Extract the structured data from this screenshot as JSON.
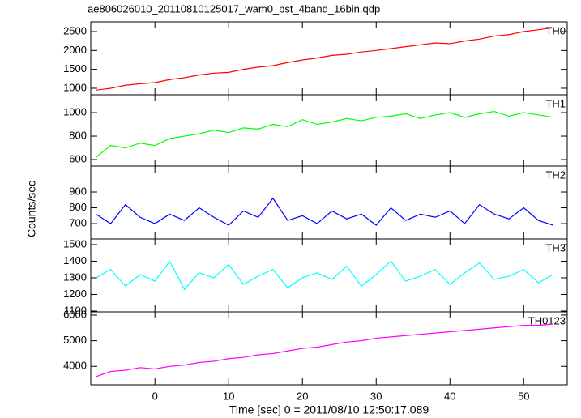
{
  "chart_data": [
    {
      "type": "line",
      "title": "ae806026010_20110810125017_wam0_bst_4band_16bin.qdp",
      "label": "TH0",
      "x": [
        -8,
        -6,
        -4,
        -2,
        0,
        2,
        4,
        6,
        8,
        10,
        12,
        14,
        16,
        18,
        20,
        22,
        24,
        26,
        28,
        30,
        32,
        34,
        36,
        38,
        40,
        42,
        44,
        46,
        48,
        50,
        52,
        54
      ],
      "series": [
        {
          "name": "TH0",
          "color": "#ff0000",
          "values": [
            950,
            1000,
            1080,
            1120,
            1150,
            1230,
            1280,
            1350,
            1400,
            1420,
            1500,
            1560,
            1600,
            1680,
            1750,
            1800,
            1870,
            1900,
            1960,
            2000,
            2050,
            2100,
            2150,
            2200,
            2180,
            2250,
            2300,
            2380,
            2420,
            2500,
            2550,
            2600
          ]
        }
      ],
      "xlim": [
        -8.7,
        55.9
      ],
      "xticks": [
        0,
        10,
        20,
        30,
        40,
        50
      ],
      "ylim": [
        828,
        2757
      ],
      "yticks": [
        1000,
        1500,
        2000,
        2500
      ]
    },
    {
      "type": "line",
      "label": "TH1",
      "x": [
        -8,
        -6,
        -4,
        -2,
        0,
        2,
        4,
        6,
        8,
        10,
        12,
        14,
        16,
        18,
        20,
        22,
        24,
        26,
        28,
        30,
        32,
        34,
        36,
        38,
        40,
        42,
        44,
        46,
        48,
        50,
        52,
        54
      ],
      "series": [
        {
          "name": "TH1",
          "color": "#00ff00",
          "values": [
            620,
            720,
            700,
            740,
            720,
            780,
            800,
            820,
            850,
            830,
            870,
            860,
            900,
            880,
            940,
            900,
            920,
            950,
            930,
            960,
            970,
            990,
            950,
            980,
            1000,
            960,
            990,
            1010,
            970,
            1000,
            980,
            960
          ]
        }
      ],
      "xlim": [
        -8.7,
        55.9
      ],
      "xticks": [
        0,
        10,
        20,
        30,
        40,
        50
      ],
      "ylim": [
        545,
        1152
      ],
      "yticks": [
        600,
        800,
        1000
      ]
    },
    {
      "type": "line",
      "label": "TH2",
      "ylabel": "Counts/sec",
      "x": [
        -8,
        -6,
        -4,
        -2,
        0,
        2,
        4,
        6,
        8,
        10,
        12,
        14,
        16,
        18,
        20,
        22,
        24,
        26,
        28,
        30,
        32,
        34,
        36,
        38,
        40,
        42,
        44,
        46,
        48,
        50,
        52,
        54
      ],
      "series": [
        {
          "name": "TH2",
          "color": "#0000ff",
          "values": [
            760,
            700,
            820,
            740,
            700,
            760,
            720,
            800,
            740,
            690,
            780,
            740,
            860,
            720,
            750,
            700,
            780,
            730,
            760,
            690,
            800,
            720,
            760,
            740,
            780,
            700,
            820,
            760,
            730,
            800,
            720,
            690
          ]
        }
      ],
      "xlim": [
        -8.7,
        55.9
      ],
      "xticks": [
        0,
        10,
        20,
        30,
        40,
        50
      ],
      "ylim": [
        603,
        1064
      ],
      "yticks": [
        700,
        800,
        900
      ]
    },
    {
      "type": "line",
      "label": "TH3",
      "x": [
        -8,
        -6,
        -4,
        -2,
        0,
        2,
        4,
        6,
        8,
        10,
        12,
        14,
        16,
        18,
        20,
        22,
        24,
        26,
        28,
        30,
        32,
        34,
        36,
        38,
        40,
        42,
        44,
        46,
        48,
        50,
        52,
        54
      ],
      "series": [
        {
          "name": "TH3",
          "color": "#00ffff",
          "values": [
            1300,
            1350,
            1250,
            1320,
            1280,
            1400,
            1230,
            1330,
            1300,
            1380,
            1260,
            1310,
            1350,
            1240,
            1300,
            1330,
            1290,
            1370,
            1250,
            1320,
            1400,
            1280,
            1310,
            1350,
            1260,
            1330,
            1390,
            1290,
            1310,
            1350,
            1270,
            1320
          ]
        }
      ],
      "xlim": [
        -8.7,
        55.9
      ],
      "xticks": [
        0,
        10,
        20,
        30,
        40,
        50
      ],
      "ylim": [
        1095,
        1534
      ],
      "yticks": [
        1100,
        1200,
        1300,
        1400,
        1500
      ]
    },
    {
      "type": "line",
      "label": "TH0123",
      "xlabel": "Time [sec] 0 = 2011/08/10 12:50:17.089",
      "x": [
        -8,
        -6,
        -4,
        -2,
        0,
        2,
        4,
        6,
        8,
        10,
        12,
        14,
        16,
        18,
        20,
        22,
        24,
        26,
        28,
        30,
        32,
        34,
        36,
        38,
        40,
        42,
        44,
        46,
        48,
        50,
        52,
        54
      ],
      "series": [
        {
          "name": "TH0123",
          "color": "#ff00ff",
          "values": [
            3600,
            3800,
            3850,
            3950,
            3900,
            4000,
            4050,
            4150,
            4200,
            4300,
            4350,
            4450,
            4500,
            4600,
            4700,
            4750,
            4850,
            4950,
            5000,
            5100,
            5150,
            5200,
            5250,
            5300,
            5350,
            5400,
            5450,
            5500,
            5550,
            5600,
            5600,
            5650
          ]
        }
      ],
      "xlim": [
        -8.7,
        55.9
      ],
      "xticks": [
        0,
        10,
        20,
        30,
        40,
        50
      ],
      "ylim": [
        3281,
        6125
      ],
      "yticks": [
        4000,
        5000,
        6000
      ]
    }
  ]
}
